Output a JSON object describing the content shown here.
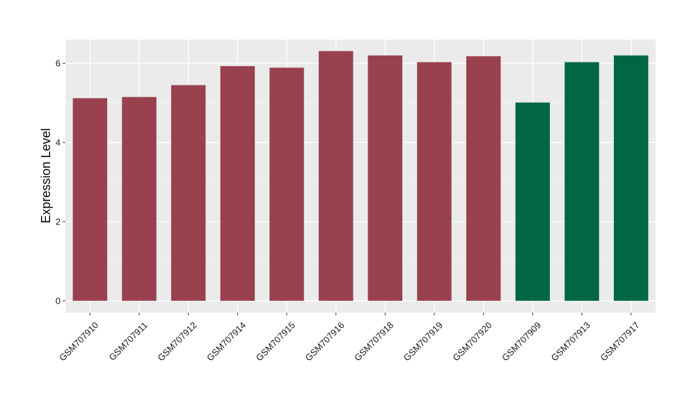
{
  "chart_data": {
    "type": "bar",
    "title": "",
    "xlabel": "",
    "ylabel": "Expression Level",
    "ylim": [
      -0.3,
      6.6
    ],
    "yticks": [
      0,
      2,
      4,
      6
    ],
    "grid": true,
    "background": "#ebebeb",
    "categories": [
      "GSM707910",
      "GSM707911",
      "GSM707912",
      "GSM707914",
      "GSM707915",
      "GSM707916",
      "GSM707918",
      "GSM707919",
      "GSM707920",
      "GSM707909",
      "GSM707913",
      "GSM707917"
    ],
    "values": [
      5.12,
      5.15,
      5.45,
      5.93,
      5.89,
      6.31,
      6.2,
      6.03,
      6.18,
      5.01,
      6.03,
      6.2
    ],
    "colors": [
      "#99414f",
      "#99414f",
      "#99414f",
      "#99414f",
      "#99414f",
      "#99414f",
      "#99414f",
      "#99414f",
      "#99414f",
      "#006644",
      "#006644",
      "#006644"
    ]
  }
}
